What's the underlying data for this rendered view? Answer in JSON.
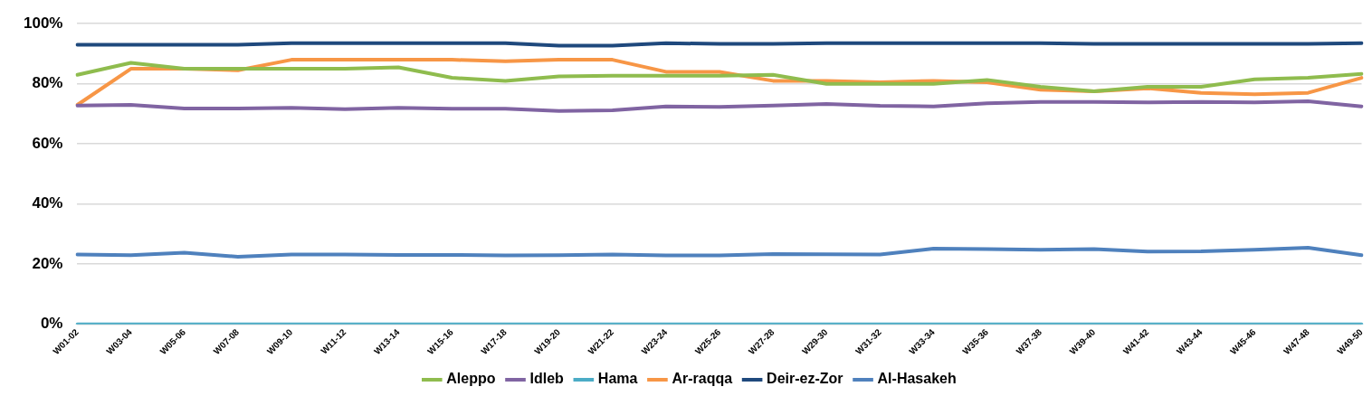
{
  "chart_data": {
    "type": "line",
    "categories": [
      "W01-02",
      "W03-04",
      "W05-06",
      "W07-08",
      "W09-10",
      "W11-12",
      "W13-14",
      "W15-16",
      "W17-18",
      "W19-20",
      "W21-22",
      "W23-24",
      "W25-26",
      "W27-28",
      "W29-30",
      "W31-32",
      "W33-34",
      "W35-36",
      "W37-38",
      "W39-40",
      "W41-42",
      "W43-44",
      "W45-46",
      "W47-48",
      "W49-50"
    ],
    "series": [
      {
        "name": "Aleppo",
        "color": "#8fbc4e",
        "values": [
          83,
          87,
          85,
          85,
          85,
          85,
          85.5,
          82,
          81,
          82.5,
          82.7,
          82.7,
          82.7,
          83,
          80,
          80,
          80,
          81.3,
          79,
          77.5,
          79,
          79,
          81.5,
          82,
          83.3
        ]
      },
      {
        "name": "Idleb",
        "color": "#8064a2",
        "values": [
          72.8,
          73,
          71.8,
          71.8,
          72,
          71.6,
          72,
          71.7,
          71.7,
          71,
          71.2,
          72.5,
          72.3,
          72.8,
          73.3,
          72.7,
          72.5,
          73.5,
          74,
          74,
          73.8,
          74,
          73.8,
          74.2,
          72.5
        ]
      },
      {
        "name": "Hama",
        "color": "#4bacc6",
        "values": [
          0,
          0,
          0,
          0,
          0,
          0,
          0,
          0,
          0,
          0,
          0,
          0,
          0,
          0,
          0,
          0,
          0,
          0,
          0,
          0,
          0,
          0,
          0,
          0,
          0
        ]
      },
      {
        "name": "Ar-raqqa",
        "color": "#f79646",
        "values": [
          73,
          85,
          85,
          84.5,
          88,
          88,
          88,
          88,
          87.5,
          88,
          88,
          84,
          84,
          81,
          81,
          80.5,
          81,
          80.5,
          78,
          77.5,
          78.5,
          77,
          76.5,
          77,
          82
        ]
      },
      {
        "name": "Deir-ez-Zor",
        "color": "#1f497d",
        "values": [
          93,
          93,
          93,
          93,
          93.5,
          93.5,
          93.5,
          93.5,
          93.5,
          92.7,
          92.7,
          93.5,
          93.3,
          93.3,
          93.5,
          93.5,
          93.5,
          93.5,
          93.5,
          93.3,
          93.3,
          93.3,
          93.3,
          93.3,
          93.5
        ]
      },
      {
        "name": "Al-Hasakeh",
        "color": "#4f81bd",
        "values": [
          23.2,
          23,
          23.8,
          22.5,
          23.2,
          23.2,
          23.1,
          23.1,
          22.9,
          23,
          23.2,
          22.9,
          22.9,
          23.4,
          23.3,
          23.2,
          25.2,
          25,
          24.8,
          25,
          24.2,
          24.3,
          24.8,
          25.5,
          23
        ]
      }
    ],
    "ylim": [
      0,
      100
    ],
    "yticks": [
      {
        "value": 0,
        "label": "0%"
      },
      {
        "value": 20,
        "label": "20%"
      },
      {
        "value": 40,
        "label": "40%"
      },
      {
        "value": 60,
        "label": "60%"
      },
      {
        "value": 80,
        "label": "80%"
      },
      {
        "value": 100,
        "label": "100%"
      }
    ],
    "grid": "y",
    "legend": "bottom",
    "marker": "none",
    "line_style": "solid"
  }
}
